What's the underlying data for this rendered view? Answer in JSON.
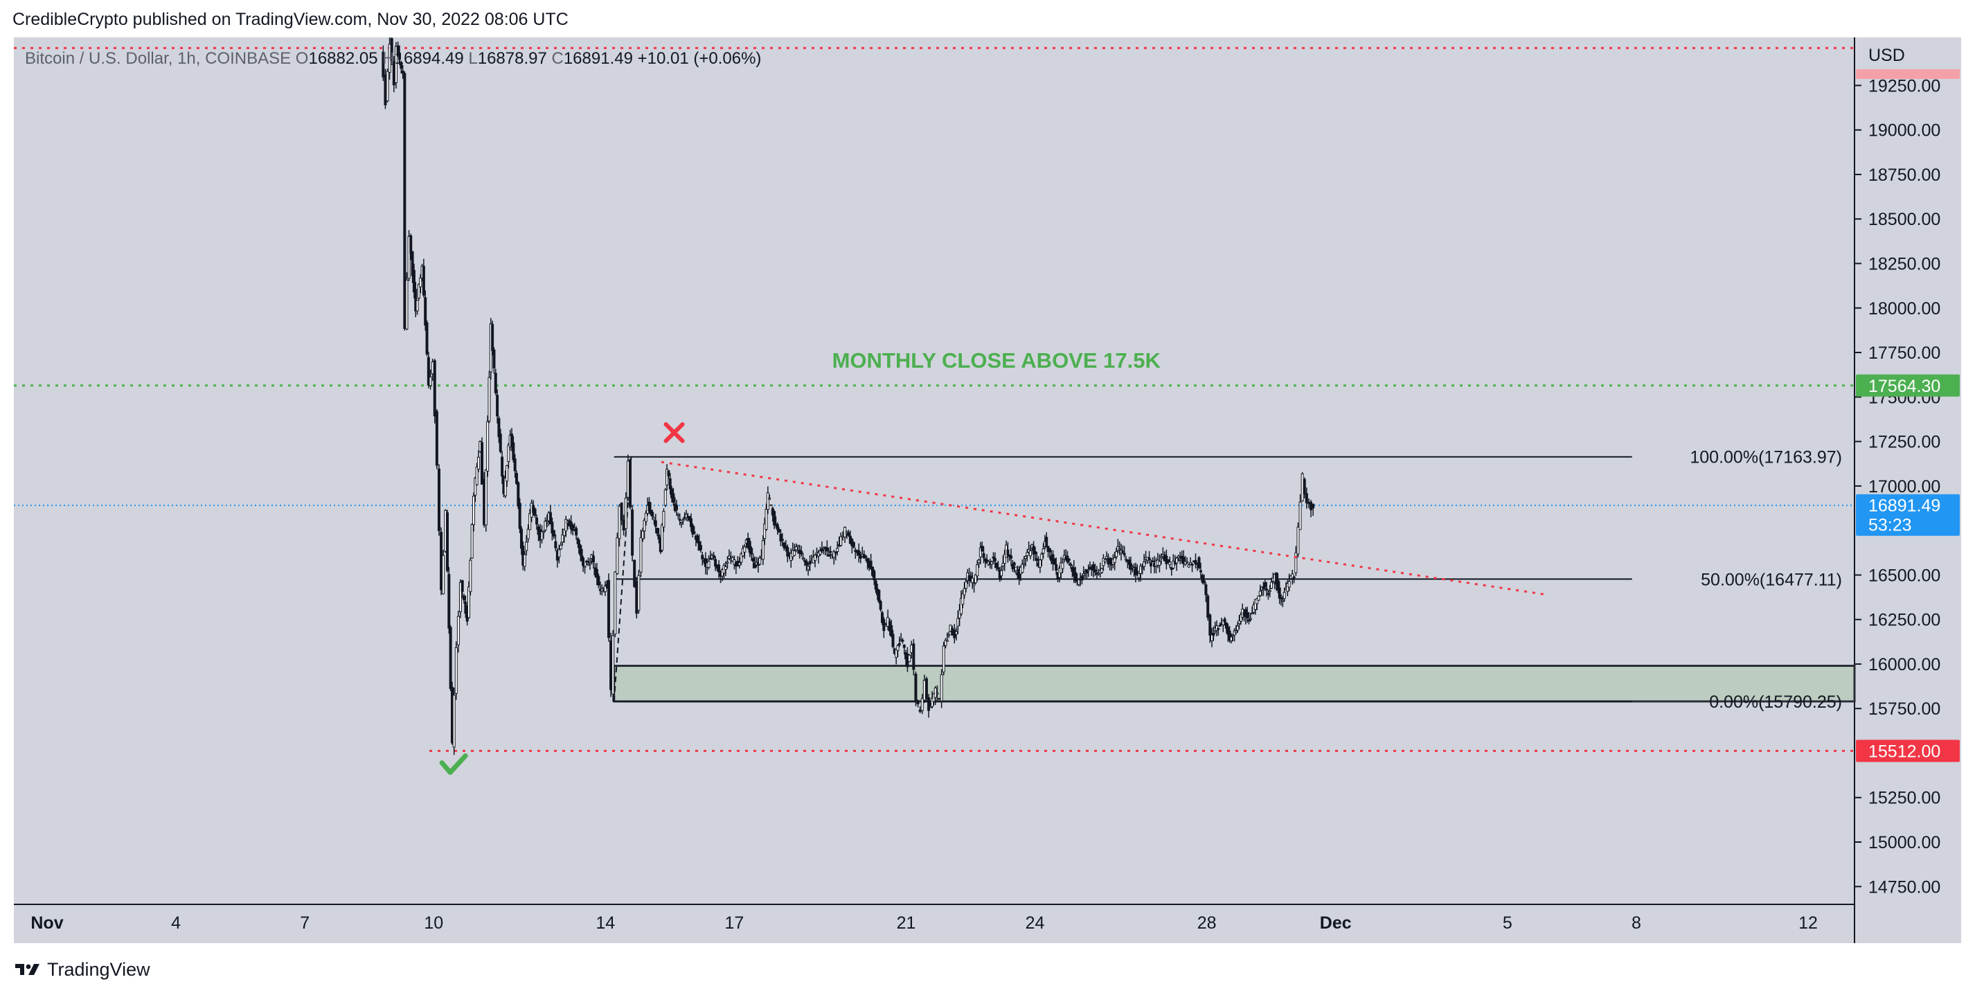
{
  "header": {
    "published": "CredibleCrypto published on TradingView.com, Nov 30, 2022 08:06 UTC"
  },
  "footer": {
    "brand": "TradingView",
    "logo_icon": "tradingview-logo-icon"
  },
  "colors": {
    "background": "#d1d4dc",
    "candle": "#131722",
    "green": "#4caf50",
    "red": "#f23645",
    "blue": "#2196f3",
    "zone_fill": "#bcccc0",
    "zone_border": "#2a2e39"
  },
  "chart_data": {
    "type": "candlestick",
    "symbol_label": "Bitcoin / U.S. Dollar, 1h, COINBASE",
    "ohlc": [
      {
        "label": "O",
        "value": "16882.05"
      },
      {
        "label": "H",
        "value": "16894.49"
      },
      {
        "label": "L",
        "value": "16878.97"
      },
      {
        "label": "C",
        "value": "16891.49"
      }
    ],
    "change": "+10.01 (+0.06%)",
    "currency": "USD",
    "ylim": [
      14650,
      19520
    ],
    "xlim_days": [
      0,
      43
    ],
    "y_ticks": [
      {
        "v": 14750,
        "label": "14750.00"
      },
      {
        "v": 15000,
        "label": "15000.00"
      },
      {
        "v": 15250,
        "label": "15250.00"
      },
      {
        "v": 15750,
        "label": "15750.00"
      },
      {
        "v": 16000,
        "label": "16000.00"
      },
      {
        "v": 16250,
        "label": "16250.00"
      },
      {
        "v": 16500,
        "label": "16500.00"
      },
      {
        "v": 17000,
        "label": "17000.00"
      },
      {
        "v": 17250,
        "label": "17250.00"
      },
      {
        "v": 17500,
        "label": "17500.00"
      },
      {
        "v": 17750,
        "label": "17750.00"
      },
      {
        "v": 18000,
        "label": "18000.00"
      },
      {
        "v": 18250,
        "label": "18250.00"
      },
      {
        "v": 18500,
        "label": "18500.00"
      },
      {
        "v": 18750,
        "label": "18750.00"
      },
      {
        "v": 19000,
        "label": "19000.00"
      },
      {
        "v": 19250,
        "label": "19250.00"
      }
    ],
    "x_ticks": [
      {
        "day": 0,
        "label": "Nov",
        "bold": true
      },
      {
        "day": 3,
        "label": "4"
      },
      {
        "day": 6,
        "label": "7"
      },
      {
        "day": 9,
        "label": "10"
      },
      {
        "day": 13,
        "label": "14"
      },
      {
        "day": 16,
        "label": "17"
      },
      {
        "day": 20,
        "label": "21"
      },
      {
        "day": 23,
        "label": "24"
      },
      {
        "day": 27,
        "label": "28"
      },
      {
        "day": 30,
        "label": "Dec",
        "bold": true
      },
      {
        "day": 34,
        "label": "5"
      },
      {
        "day": 37,
        "label": "8"
      },
      {
        "day": 41,
        "label": "12"
      }
    ],
    "price_path": [
      [
        7.8,
        19450
      ],
      [
        7.9,
        19150
      ],
      [
        8.0,
        19500
      ],
      [
        8.1,
        19250
      ],
      [
        8.15,
        19480
      ],
      [
        8.3,
        19300
      ],
      [
        8.35,
        17900
      ],
      [
        8.45,
        18400
      ],
      [
        8.6,
        18000
      ],
      [
        8.75,
        18250
      ],
      [
        8.9,
        17550
      ],
      [
        9.0,
        17700
      ],
      [
        9.1,
        17100
      ],
      [
        9.2,
        16400
      ],
      [
        9.3,
        16850
      ],
      [
        9.45,
        15540
      ],
      [
        9.55,
        16100
      ],
      [
        9.65,
        16450
      ],
      [
        9.8,
        16250
      ],
      [
        9.95,
        16950
      ],
      [
        10.1,
        17250
      ],
      [
        10.2,
        16800
      ],
      [
        10.35,
        17900
      ],
      [
        10.5,
        17400
      ],
      [
        10.65,
        16950
      ],
      [
        10.8,
        17300
      ],
      [
        10.95,
        17000
      ],
      [
        11.1,
        16550
      ],
      [
        11.3,
        16900
      ],
      [
        11.5,
        16700
      ],
      [
        11.7,
        16850
      ],
      [
        11.9,
        16600
      ],
      [
        12.1,
        16800
      ],
      [
        12.3,
        16750
      ],
      [
        12.5,
        16550
      ],
      [
        12.7,
        16600
      ],
      [
        12.9,
        16400
      ],
      [
        13.05,
        16450
      ],
      [
        13.15,
        15850
      ],
      [
        13.25,
        16500
      ],
      [
        13.35,
        16900
      ],
      [
        13.45,
        16750
      ],
      [
        13.55,
        17150
      ],
      [
        13.65,
        16600
      ],
      [
        13.75,
        16300
      ],
      [
        13.85,
        16700
      ],
      [
        14.0,
        16900
      ],
      [
        14.15,
        16800
      ],
      [
        14.3,
        16650
      ],
      [
        14.45,
        17100
      ],
      [
        14.6,
        16900
      ],
      [
        14.75,
        16800
      ],
      [
        14.9,
        16850
      ],
      [
        15.05,
        16750
      ],
      [
        15.2,
        16650
      ],
      [
        15.35,
        16550
      ],
      [
        15.5,
        16600
      ],
      [
        15.7,
        16500
      ],
      [
        15.9,
        16600
      ],
      [
        16.1,
        16550
      ],
      [
        16.3,
        16700
      ],
      [
        16.5,
        16550
      ],
      [
        16.65,
        16600
      ],
      [
        16.8,
        16950
      ],
      [
        16.95,
        16800
      ],
      [
        17.1,
        16700
      ],
      [
        17.3,
        16600
      ],
      [
        17.5,
        16650
      ],
      [
        17.7,
        16550
      ],
      [
        17.9,
        16600
      ],
      [
        18.1,
        16650
      ],
      [
        18.3,
        16600
      ],
      [
        18.5,
        16700
      ],
      [
        18.6,
        16750
      ],
      [
        18.8,
        16650
      ],
      [
        19.0,
        16600
      ],
      [
        19.2,
        16550
      ],
      [
        19.35,
        16400
      ],
      [
        19.5,
        16200
      ],
      [
        19.6,
        16250
      ],
      [
        19.75,
        16050
      ],
      [
        19.9,
        16150
      ],
      [
        20.05,
        16000
      ],
      [
        20.15,
        16100
      ],
      [
        20.25,
        15800
      ],
      [
        20.35,
        15720
      ],
      [
        20.45,
        15900
      ],
      [
        20.55,
        15750
      ],
      [
        20.7,
        15850
      ],
      [
        20.8,
        15800
      ],
      [
        20.9,
        16100
      ],
      [
        21.05,
        16200
      ],
      [
        21.15,
        16150
      ],
      [
        21.3,
        16350
      ],
      [
        21.45,
        16500
      ],
      [
        21.6,
        16450
      ],
      [
        21.75,
        16650
      ],
      [
        21.9,
        16550
      ],
      [
        22.05,
        16600
      ],
      [
        22.2,
        16500
      ],
      [
        22.35,
        16650
      ],
      [
        22.5,
        16550
      ],
      [
        22.65,
        16500
      ],
      [
        22.8,
        16600
      ],
      [
        22.95,
        16650
      ],
      [
        23.1,
        16550
      ],
      [
        23.25,
        16700
      ],
      [
        23.4,
        16600
      ],
      [
        23.55,
        16500
      ],
      [
        23.7,
        16600
      ],
      [
        23.85,
        16550
      ],
      [
        24.0,
        16450
      ],
      [
        24.15,
        16500
      ],
      [
        24.3,
        16550
      ],
      [
        24.5,
        16500
      ],
      [
        24.65,
        16600
      ],
      [
        24.8,
        16550
      ],
      [
        24.95,
        16650
      ],
      [
        25.1,
        16600
      ],
      [
        25.25,
        16550
      ],
      [
        25.4,
        16500
      ],
      [
        25.6,
        16600
      ],
      [
        25.8,
        16550
      ],
      [
        26.0,
        16600
      ],
      [
        26.2,
        16550
      ],
      [
        26.4,
        16600
      ],
      [
        26.6,
        16550
      ],
      [
        26.8,
        16580
      ],
      [
        27.0,
        16400
      ],
      [
        27.1,
        16150
      ],
      [
        27.25,
        16200
      ],
      [
        27.4,
        16250
      ],
      [
        27.55,
        16150
      ],
      [
        27.7,
        16200
      ],
      [
        27.85,
        16300
      ],
      [
        28.0,
        16250
      ],
      [
        28.15,
        16350
      ],
      [
        28.3,
        16450
      ],
      [
        28.45,
        16400
      ],
      [
        28.6,
        16500
      ],
      [
        28.75,
        16350
      ],
      [
        28.9,
        16450
      ],
      [
        29.05,
        16500
      ],
      [
        29.15,
        16750
      ],
      [
        29.25,
        17050
      ],
      [
        29.35,
        16900
      ],
      [
        29.45,
        16880
      ],
      [
        29.5,
        16891
      ]
    ],
    "lines": {
      "top_red": 19460,
      "monthly": 17564.3,
      "support": 15512,
      "current": 16891.49
    },
    "fib": {
      "x_start_day": 13.2,
      "x_end_day": 36.9,
      "levels": [
        {
          "value": 17163.97,
          "label": "100.00%(17163.97)"
        },
        {
          "value": 16477.11,
          "label": "50.00%(16477.11)"
        },
        {
          "value": 15790.25,
          "label": "0.00%(15790.25)"
        }
      ]
    },
    "zone": {
      "x_start_day": 13.2,
      "low": 15790,
      "high": 15990
    },
    "trendline": {
      "from": [
        14.3,
        17135
      ],
      "to": [
        34.9,
        16390
      ]
    },
    "annotation": {
      "text": "MONTHLY CLOSE ABOVE 17.5K",
      "day": 22.1,
      "price": 17665
    },
    "markers": [
      {
        "name": "cross-icon",
        "day": 14.6,
        "price": 17300
      },
      {
        "name": "checkmark-icon",
        "day": 9.45,
        "price": 15430
      }
    ],
    "badges": {
      "monthly": "17564.30",
      "current_price": "16891.49",
      "countdown": "53:23",
      "support": "15512.00"
    }
  }
}
